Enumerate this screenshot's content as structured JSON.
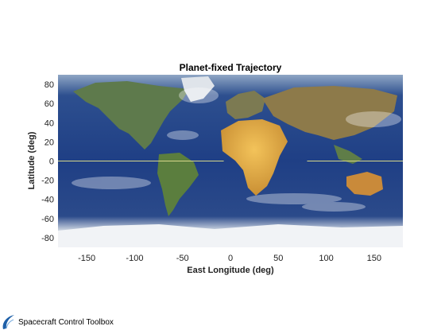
{
  "chart_data": {
    "type": "line",
    "title": "Planet-fixed Trajectory",
    "xlabel": "East Longitude (deg)",
    "ylabel": "Latitude (deg)",
    "xlim": [
      -180,
      180
    ],
    "ylim": [
      -90,
      90
    ],
    "xticks": [
      -150,
      -100,
      -50,
      0,
      50,
      100,
      150
    ],
    "yticks": [
      -80,
      -60,
      -40,
      -20,
      0,
      20,
      40,
      60,
      80
    ],
    "background": "earth-map-image",
    "series": [
      {
        "x": [
          -180,
          -7
        ],
        "y": [
          0,
          0
        ],
        "color": "#d8d88a"
      },
      {
        "x": [
          80,
          180
        ],
        "y": [
          0,
          0
        ],
        "color": "#d8d88a"
      }
    ]
  },
  "branding": {
    "text": "Spacecraft Control Toolbox",
    "icon": "toolbox-swoosh-icon"
  }
}
